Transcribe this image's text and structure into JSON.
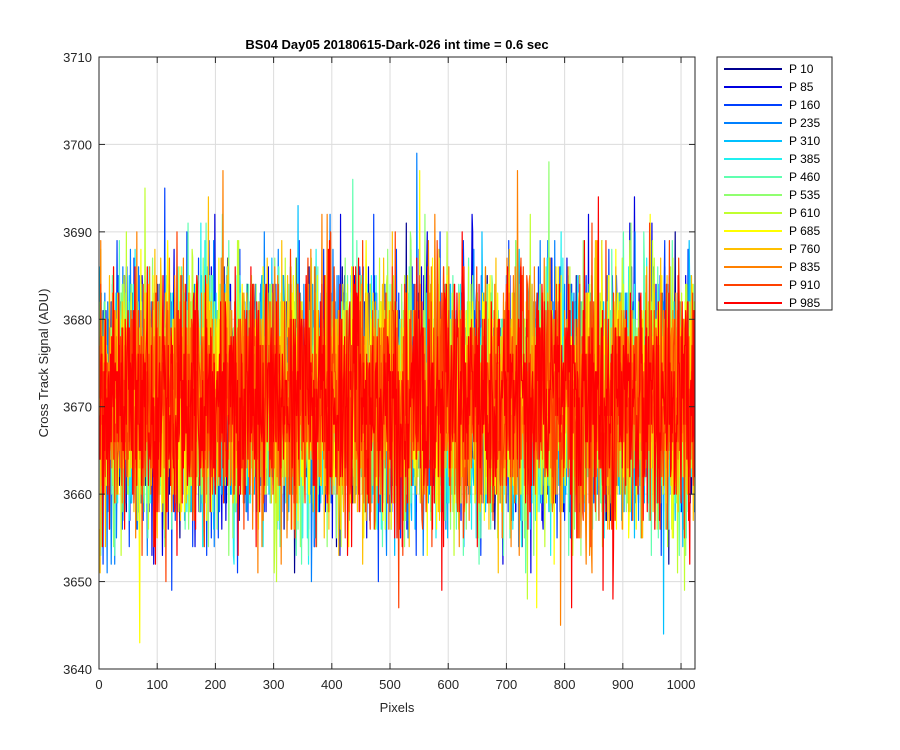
{
  "chart_data": {
    "type": "line",
    "title": "BS04 Day05 20180615-Dark-026 int time = 0.6 sec",
    "xlabel": "Pixels",
    "ylabel": "Cross Track Signal (ADU)",
    "xlim": [
      0,
      1024
    ],
    "ylim": [
      3640,
      3710
    ],
    "xticks": [
      0,
      100,
      200,
      300,
      400,
      500,
      600,
      700,
      800,
      900,
      1000
    ],
    "yticks": [
      3640,
      3650,
      3660,
      3670,
      3680,
      3690,
      3700,
      3710
    ],
    "grid": true,
    "legend_position": "outside right, top",
    "n_points_per_series": 1024,
    "mean_level": 3671,
    "noise_std_adu": 7,
    "series": [
      {
        "name": "P 10",
        "color": "#00008f"
      },
      {
        "name": "P 85",
        "color": "#0000e0"
      },
      {
        "name": "P 160",
        "color": "#0040ff"
      },
      {
        "name": "P 235",
        "color": "#0080ff"
      },
      {
        "name": "P 310",
        "color": "#00c0ff"
      },
      {
        "name": "P 385",
        "color": "#20f0f0"
      },
      {
        "name": "P 460",
        "color": "#60ffb0"
      },
      {
        "name": "P 535",
        "color": "#90ff70"
      },
      {
        "name": "P 610",
        "color": "#c0ff30"
      },
      {
        "name": "P 685",
        "color": "#ffff00"
      },
      {
        "name": "P 760",
        "color": "#ffc000"
      },
      {
        "name": "P 835",
        "color": "#ff8000"
      },
      {
        "name": "P 910",
        "color": "#ff4000"
      },
      {
        "name": "P 985",
        "color": "#ff0000"
      }
    ]
  }
}
